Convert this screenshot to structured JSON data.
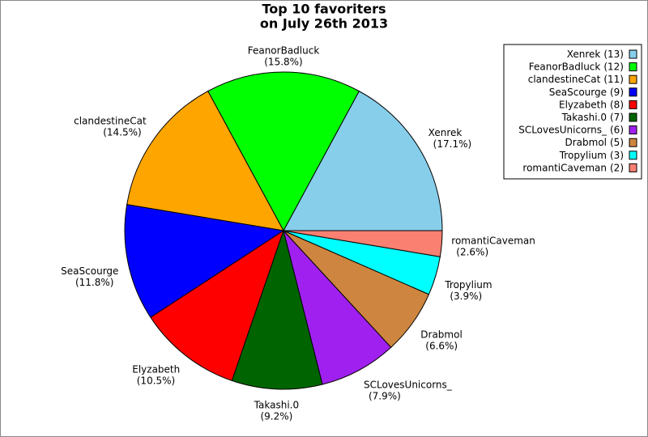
{
  "chart_data": {
    "type": "pie",
    "title": [
      "Top 10 favoriters",
      "on July 26th 2013"
    ],
    "categories": [
      "Xenrek",
      "FeanorBadluck",
      "clandestineCat",
      "SeaScourge",
      "Elyzabeth",
      "Takashi.0",
      "SCLovesUnicorns_",
      "Drabmol",
      "Tropylium",
      "romantiCaveman"
    ],
    "values": [
      13,
      12,
      11,
      9,
      8,
      7,
      6,
      5,
      3,
      2
    ],
    "value_labels": [
      "(13)",
      "(12)",
      "(11)",
      "(9)",
      "(8)",
      "(7)",
      "(6)",
      "(5)",
      "(3)",
      "(2)"
    ],
    "percents": [
      17.1,
      15.8,
      14.5,
      11.8,
      10.5,
      9.2,
      7.9,
      6.6,
      3.9,
      2.6
    ],
    "percent_labels": [
      "(17.1%)",
      "(15.8%)",
      "(14.5%)",
      "(11.8%)",
      "(10.5%)",
      "(9.2%)",
      "(7.9%)",
      "(6.6%)",
      "(3.9%)",
      "(2.6%)"
    ],
    "colors": [
      "#87ceeb",
      "#00ff00",
      "#ffa500",
      "#0000ff",
      "#ff0000",
      "#006400",
      "#a020f0",
      "#cd853f",
      "#00ffff",
      "#fa8072"
    ],
    "legend": "upper right"
  }
}
